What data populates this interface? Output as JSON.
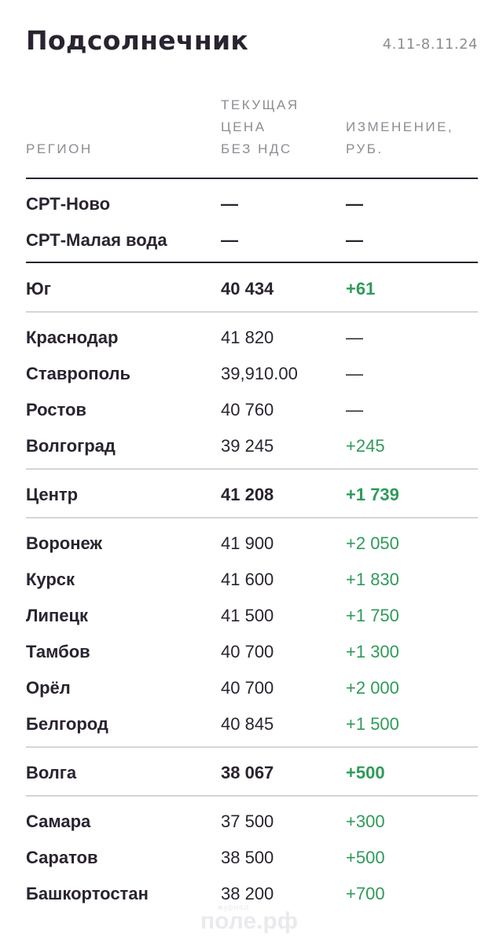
{
  "title": "Подсолнечник",
  "date_range": "4.11-8.11.24",
  "columns": {
    "region": "РЕГИОН",
    "price_lines": [
      "ТЕКУЩАЯ",
      "ЦЕНА",
      "БЕЗ НДС"
    ],
    "change_lines": [
      "ИЗМЕНЕНИЕ,",
      "РУБ."
    ]
  },
  "rows": [
    {
      "region": "СРТ-Ново",
      "price": "—",
      "change": "—"
    },
    {
      "region": "СРТ-Малая вода",
      "price": "—",
      "change": "—"
    },
    {
      "region": "Юг",
      "price": "40 434",
      "change": "+61"
    },
    {
      "region": "Краснодар",
      "price": "41 820",
      "change": "—"
    },
    {
      "region": "Ставрополь",
      "price": "39,910.00",
      "change": "—"
    },
    {
      "region": "Ростов",
      "price": "40 760",
      "change": "—"
    },
    {
      "region": "Волгоград",
      "price": "39 245",
      "change": "+245"
    },
    {
      "region": "Центр",
      "price": "41 208",
      "change": "+1 739"
    },
    {
      "region": "Воронеж",
      "price": "41 900",
      "change": "+2 050"
    },
    {
      "region": "Курск",
      "price": "41 600",
      "change": "+1 830"
    },
    {
      "region": "Липецк",
      "price": "41 500",
      "change": "+1 750"
    },
    {
      "region": "Тамбов",
      "price": "40 700",
      "change": "+1 300"
    },
    {
      "region": "Орёл",
      "price": "40 700",
      "change": "+2 000"
    },
    {
      "region": "Белгород",
      "price": "40 845",
      "change": "+1 500"
    },
    {
      "region": "Волга",
      "price": "38 067",
      "change": "+500"
    },
    {
      "region": "Самара",
      "price": "37 500",
      "change": "+300"
    },
    {
      "region": "Саратов",
      "price": "38 500",
      "change": "+500"
    },
    {
      "region": "Башкортостан",
      "price": "38 200",
      "change": "+700"
    }
  ],
  "watermark": {
    "top": "журнал",
    "main": "поле.рф"
  },
  "colors": {
    "text": "#2a2330",
    "muted": "#8f8b93",
    "positive": "#2f9a5a",
    "rule": "#d6d4d8"
  }
}
